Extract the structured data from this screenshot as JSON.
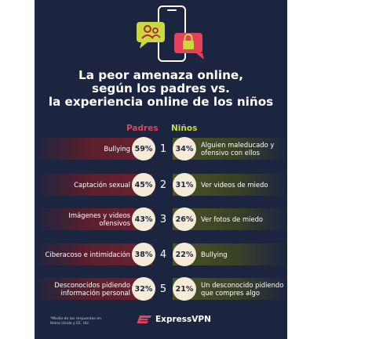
{
  "title_lines": [
    "La peor amenaza online,",
    "según los padres vs.",
    "la experiencia online de los niños"
  ],
  "columns": {
    "parents": "Padres",
    "kids": "Niños"
  },
  "colors": {
    "background": "#1c2540",
    "parents_accent": "#e3425a",
    "kids_accent": "#c9d93e",
    "circle_fill": "#f4ecd8"
  },
  "icons": [
    "phone-icon",
    "user-chat-bubble-icon",
    "lock-chat-bubble-icon",
    "expressvpn-logo-icon"
  ],
  "chart_data": {
    "type": "table",
    "title": "La peor amenaza online, según los padres vs. la experiencia online de los niños",
    "rows": [
      {
        "rank": "1",
        "parent_threat": "Bullying",
        "parent_pct": "59%",
        "kid_pct": "34%",
        "kid_experience": "Alguien maleducado y ofensivo con ellos"
      },
      {
        "rank": "2",
        "parent_threat": "Captación sexual",
        "parent_pct": "45%",
        "kid_pct": "31%",
        "kid_experience": "Ver videos de miedo"
      },
      {
        "rank": "3",
        "parent_threat": "Imágenes y videos ofensivos",
        "parent_pct": "43%",
        "kid_pct": "26%",
        "kid_experience": "Ver fotos de miedo"
      },
      {
        "rank": "4",
        "parent_threat": "Ciberacoso e intimidación",
        "parent_pct": "38%",
        "kid_pct": "22%",
        "kid_experience": "Bullying"
      },
      {
        "rank": "5",
        "parent_threat": "Desconocidos pidiendo información personal",
        "parent_pct": "32%",
        "kid_pct": "21%",
        "kid_experience": "Un desconocido pidiendo que compres algo"
      }
    ]
  },
  "footnote": "*Media de las respuestas en Reino Unido y EE. UU.",
  "brand": "ExpressVPN"
}
